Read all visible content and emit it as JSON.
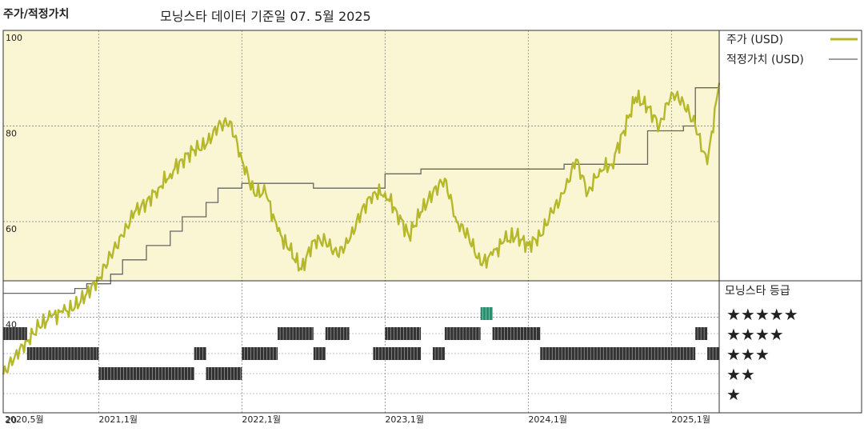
{
  "header": {
    "left_title": "주가/적정가치",
    "subtitle": "모닝스타 데이터 기준일 07. 5월 2025"
  },
  "legend": {
    "price_label": "주가 (USD)",
    "fair_label": "적정가치 (USD)",
    "rating_title": "모닝스타 등급",
    "stars": [
      "★★★★★",
      "★★★★",
      "★★★",
      "★★",
      "★"
    ]
  },
  "colors": {
    "price_line": "#b5b82a",
    "fair_line": "#666666",
    "upper_bg": "#faf5d2",
    "rating_bar": "#333333",
    "rating_highlight": "#2e8b6e"
  },
  "chart_data": {
    "type": "line",
    "x_axis": {
      "ticks": [
        "2020,5월",
        "2021,1월",
        "2022,1월",
        "2023,1월",
        "2024,1월",
        "2025,1월"
      ],
      "start": "2020-05",
      "end": "2025-05"
    },
    "y_axis": {
      "ticks": [
        20,
        40,
        60,
        80,
        100
      ],
      "range": [
        20,
        100
      ]
    },
    "series": [
      {
        "name": "주가 (USD)",
        "points": [
          [
            "2020-05",
            28
          ],
          [
            "2020-06",
            32
          ],
          [
            "2020-07",
            35
          ],
          [
            "2020-08",
            38
          ],
          [
            "2020-09",
            40
          ],
          [
            "2020-10",
            41
          ],
          [
            "2020-11",
            42
          ],
          [
            "2020-12",
            45
          ],
          [
            "2021-01",
            48
          ],
          [
            "2021-02",
            53
          ],
          [
            "2021-03",
            57
          ],
          [
            "2021-04",
            62
          ],
          [
            "2021-05",
            64
          ],
          [
            "2021-06",
            67
          ],
          [
            "2021-07",
            70
          ],
          [
            "2021-08",
            73
          ],
          [
            "2021-09",
            75
          ],
          [
            "2021-10",
            76
          ],
          [
            "2021-11",
            80
          ],
          [
            "2021-12",
            81
          ],
          [
            "2022-01",
            73
          ],
          [
            "2022-02",
            66
          ],
          [
            "2022-03",
            66
          ],
          [
            "2022-04",
            58
          ],
          [
            "2022-05",
            54
          ],
          [
            "2022-06",
            50
          ],
          [
            "2022-07",
            56
          ],
          [
            "2022-08",
            56
          ],
          [
            "2022-09",
            53
          ],
          [
            "2022-10",
            56
          ],
          [
            "2022-11",
            62
          ],
          [
            "2022-12",
            66
          ],
          [
            "2023-01",
            66
          ],
          [
            "2023-02",
            62
          ],
          [
            "2023-03",
            57
          ],
          [
            "2023-04",
            62
          ],
          [
            "2023-05",
            66
          ],
          [
            "2023-06",
            69
          ],
          [
            "2023-07",
            60
          ],
          [
            "2023-08",
            57
          ],
          [
            "2023-09",
            51
          ],
          [
            "2023-10",
            53
          ],
          [
            "2023-11",
            56
          ],
          [
            "2023-12",
            57
          ],
          [
            "2024-01",
            55
          ],
          [
            "2024-02",
            57
          ],
          [
            "2024-03",
            62
          ],
          [
            "2024-04",
            66
          ],
          [
            "2024-05",
            73
          ],
          [
            "2024-06",
            66
          ],
          [
            "2024-07",
            71
          ],
          [
            "2024-08",
            72
          ],
          [
            "2024-09",
            79
          ],
          [
            "2024-10",
            86
          ],
          [
            "2024-11",
            84
          ],
          [
            "2024-12",
            80
          ],
          [
            "2025-01",
            87
          ],
          [
            "2025-02",
            85
          ],
          [
            "2025-03",
            80
          ],
          [
            "2025-04",
            72
          ],
          [
            "2025-05",
            89
          ]
        ]
      },
      {
        "name": "적정가치 (USD)",
        "points": [
          [
            "2020-05",
            45
          ],
          [
            "2020-10",
            45
          ],
          [
            "2020-11",
            46
          ],
          [
            "2020-12",
            47
          ],
          [
            "2021-01",
            47
          ],
          [
            "2021-02",
            49
          ],
          [
            "2021-03",
            52
          ],
          [
            "2021-05",
            55
          ],
          [
            "2021-07",
            58
          ],
          [
            "2021-08",
            61
          ],
          [
            "2021-10",
            64
          ],
          [
            "2021-11",
            67
          ],
          [
            "2022-01",
            68
          ],
          [
            "2022-06",
            68
          ],
          [
            "2022-07",
            67
          ],
          [
            "2022-12",
            67
          ],
          [
            "2023-01",
            70
          ],
          [
            "2023-04",
            71
          ],
          [
            "2024-03",
            71
          ],
          [
            "2024-04",
            72
          ],
          [
            "2024-10",
            72
          ],
          [
            "2024-11",
            79
          ],
          [
            "2025-02",
            80
          ],
          [
            "2025-03",
            88
          ],
          [
            "2025-05",
            88
          ]
        ]
      }
    ],
    "star_rating": [
      {
        "start": "2020-05",
        "end": "2020-07",
        "stars": 4
      },
      {
        "start": "2020-07",
        "end": "2021-01",
        "stars": 3
      },
      {
        "start": "2021-01",
        "end": "2021-09",
        "stars": 2
      },
      {
        "start": "2021-09",
        "end": "2021-10",
        "stars": 3
      },
      {
        "start": "2021-10",
        "end": "2022-01",
        "stars": 2
      },
      {
        "start": "2022-01",
        "end": "2022-04",
        "stars": 3
      },
      {
        "start": "2022-04",
        "end": "2022-07",
        "stars": 4
      },
      {
        "start": "2022-07",
        "end": "2022-08",
        "stars": 3
      },
      {
        "start": "2022-08",
        "end": "2022-10",
        "stars": 4
      },
      {
        "start": "2022-12",
        "end": "2023-04",
        "stars": 3
      },
      {
        "start": "2023-01",
        "end": "2023-04",
        "stars": 4
      },
      {
        "start": "2023-05",
        "end": "2023-06",
        "stars": 3
      },
      {
        "start": "2023-06",
        "end": "2023-09",
        "stars": 4
      },
      {
        "start": "2023-09",
        "end": "2023-10",
        "stars": 5
      },
      {
        "start": "2023-10",
        "end": "2024-02",
        "stars": 4
      },
      {
        "start": "2024-02",
        "end": "2025-03",
        "stars": 3
      },
      {
        "start": "2025-03",
        "end": "2025-04",
        "stars": 4
      },
      {
        "start": "2025-04",
        "end": "2025-05",
        "stars": 3
      }
    ],
    "grid": true,
    "legend_position": "right"
  }
}
